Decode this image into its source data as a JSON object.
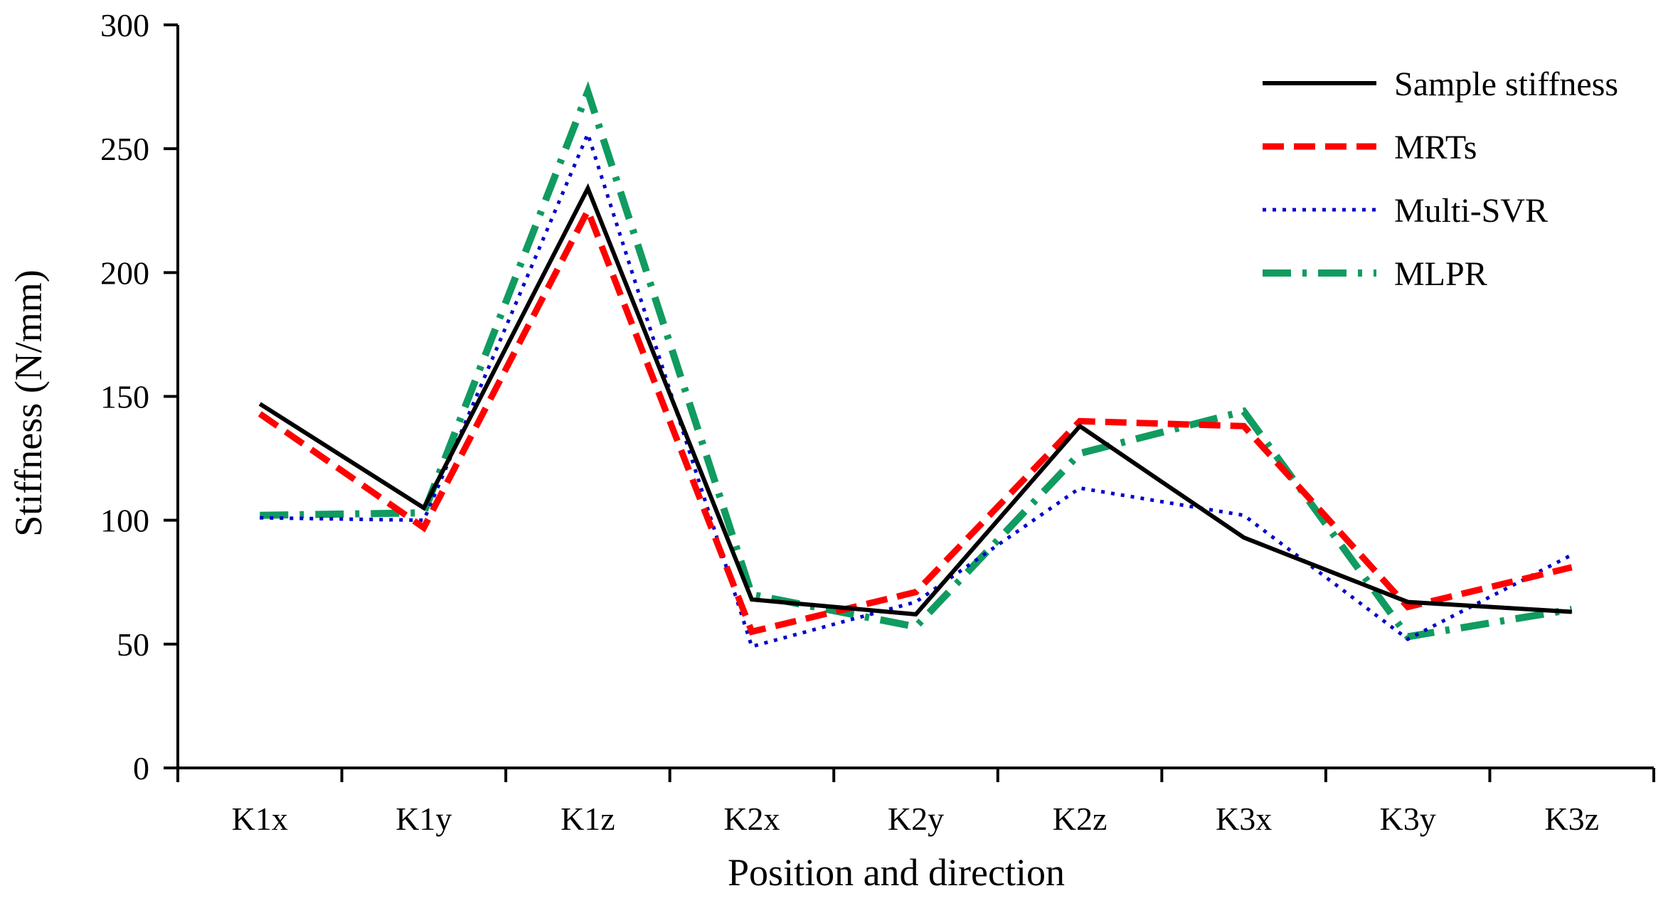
{
  "chart_data": {
    "type": "line",
    "xlabel": "Position and direction",
    "ylabel": "Stiffness (N/mm)",
    "categories": [
      "K1x",
      "K1y",
      "K1z",
      "K2x",
      "K2y",
      "K2z",
      "K3x",
      "K3y",
      "K3z"
    ],
    "ylim": [
      0,
      300
    ],
    "yticks": [
      0,
      50,
      100,
      150,
      200,
      250,
      300
    ],
    "grid": false,
    "legend_position": "top-right",
    "series": [
      {
        "name": "Sample stiffness",
        "color": "#000000",
        "style": "solid",
        "values": [
          147,
          105,
          234,
          68,
          62,
          138,
          93,
          67,
          63
        ]
      },
      {
        "name": "MRTs",
        "color": "#ff0000",
        "style": "dashed",
        "values": [
          143,
          97,
          225,
          55,
          71,
          140,
          138,
          65,
          81
        ]
      },
      {
        "name": "Multi-SVR",
        "color": "#0000cc",
        "style": "dotted",
        "values": [
          101,
          100,
          256,
          49,
          67,
          113,
          102,
          52,
          86
        ]
      },
      {
        "name": "MLPR",
        "color": "#109b60",
        "style": "dashdot",
        "values": [
          102,
          103,
          273,
          70,
          57,
          127,
          144,
          53,
          64
        ]
      }
    ]
  }
}
